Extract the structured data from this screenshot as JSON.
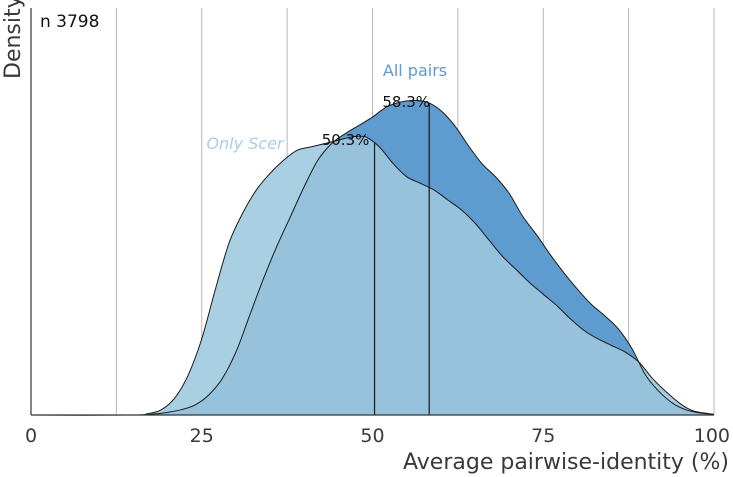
{
  "chart_data": {
    "type": "area",
    "xlabel": "Average pairwise-identity (%)",
    "ylabel": "Density",
    "xlim": [
      0,
      100
    ],
    "ylim": [
      0,
      1
    ],
    "x_ticks": [
      0,
      25,
      50,
      75,
      100
    ],
    "x_gridlines": [
      12.5,
      25,
      37.5,
      50,
      62.5,
      75,
      87.5,
      100
    ],
    "annotation": "n 3798",
    "colors": {
      "All pairs": "#5e9ccf",
      "Only Scer": "#a9cfe2",
      "overlap": "#96c2dc",
      "label_all_pairs": "#5b9bd5",
      "label_only_scer": "#a6cee3"
    },
    "series": [
      {
        "name": "All pairs",
        "median": 58.3,
        "median_label": "58.3%",
        "x": [
          0,
          15,
          18,
          20,
          22,
          24,
          26,
          28,
          30,
          32,
          34,
          36,
          38,
          40,
          42,
          44,
          46,
          48,
          50,
          52,
          54,
          56,
          58,
          60,
          62,
          64,
          66,
          68,
          70,
          72,
          74,
          76,
          78,
          80,
          82,
          84,
          86,
          88,
          90,
          92,
          94,
          96,
          98,
          100
        ],
        "values": [
          0,
          0,
          0.003,
          0.008,
          0.016,
          0.03,
          0.06,
          0.11,
          0.19,
          0.3,
          0.41,
          0.51,
          0.6,
          0.69,
          0.77,
          0.82,
          0.85,
          0.875,
          0.9,
          0.93,
          0.945,
          0.95,
          0.945,
          0.92,
          0.875,
          0.815,
          0.76,
          0.72,
          0.67,
          0.6,
          0.545,
          0.485,
          0.43,
          0.38,
          0.335,
          0.3,
          0.26,
          0.2,
          0.12,
          0.07,
          0.035,
          0.015,
          0.006,
          0.002
        ]
      },
      {
        "name": "Only Scer",
        "median": 50.3,
        "median_label": "50.3%",
        "x": [
          0,
          15,
          17,
          19,
          21,
          23,
          25,
          27,
          29,
          31,
          33,
          35,
          37,
          39,
          41,
          43,
          45,
          47,
          49,
          51,
          53,
          55,
          57,
          59,
          61,
          63,
          65,
          67,
          69,
          71,
          73,
          75,
          77,
          79,
          81,
          83,
          85,
          87,
          89,
          91,
          93,
          95,
          97,
          100
        ],
        "values": [
          0,
          0,
          0.004,
          0.015,
          0.05,
          0.12,
          0.23,
          0.38,
          0.52,
          0.61,
          0.68,
          0.73,
          0.77,
          0.8,
          0.81,
          0.82,
          0.83,
          0.84,
          0.84,
          0.81,
          0.76,
          0.72,
          0.7,
          0.68,
          0.65,
          0.62,
          0.58,
          0.53,
          0.48,
          0.44,
          0.4,
          0.365,
          0.33,
          0.29,
          0.255,
          0.23,
          0.21,
          0.19,
          0.16,
          0.11,
          0.07,
          0.035,
          0.012,
          0.002
        ]
      }
    ]
  }
}
